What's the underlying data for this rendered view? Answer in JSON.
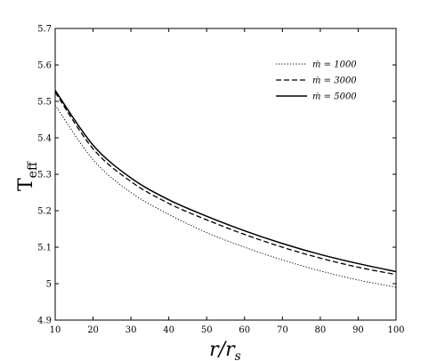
{
  "chart_data": {
    "type": "line",
    "xlabel": "r/r_s",
    "ylabel": "T_eff",
    "xlim": [
      10,
      100
    ],
    "ylim": [
      4.9,
      5.7
    ],
    "x_ticks": [
      "10",
      "20",
      "30",
      "40",
      "50",
      "60",
      "70",
      "80",
      "90",
      "100"
    ],
    "y_ticks": [
      "4.9",
      "5",
      "5.1",
      "5.2",
      "5.3",
      "5.4",
      "5.5",
      "5.6",
      "5.7"
    ],
    "grid": false,
    "legend_position": "top-right",
    "x": [
      10,
      20,
      30,
      40,
      50,
      60,
      70,
      80,
      90,
      100
    ],
    "series": [
      {
        "name": "ṁ = 1000",
        "style": "dotted",
        "values": [
          5.49,
          5.34,
          5.25,
          5.19,
          5.14,
          5.1,
          5.065,
          5.035,
          5.01,
          4.99
        ]
      },
      {
        "name": "ṁ = 3000",
        "style": "dashed",
        "values": [
          5.525,
          5.37,
          5.28,
          5.22,
          5.175,
          5.135,
          5.1,
          5.07,
          5.045,
          5.025
        ]
      },
      {
        "name": "ṁ = 5000",
        "style": "solid",
        "values": [
          5.53,
          5.38,
          5.29,
          5.23,
          5.185,
          5.145,
          5.11,
          5.08,
          5.055,
          5.033
        ]
      }
    ]
  }
}
